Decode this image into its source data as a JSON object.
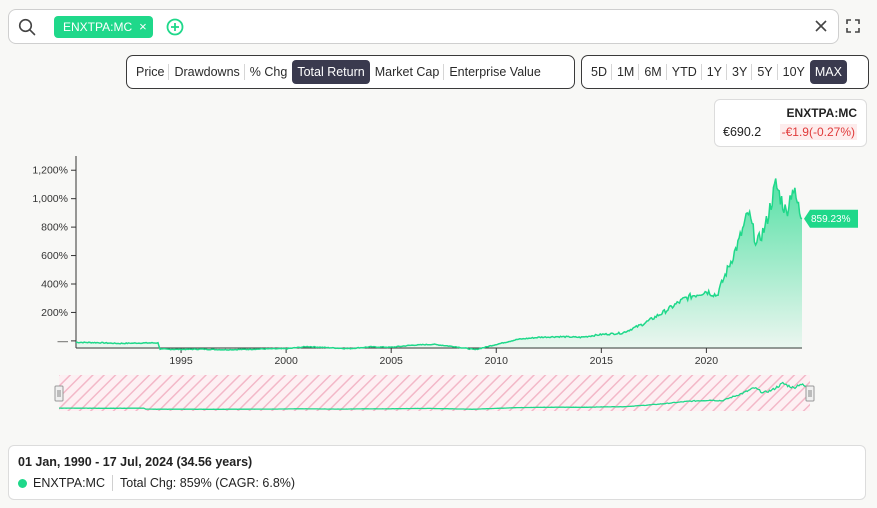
{
  "search": {
    "ticker_chip": "ENXTPA:MC",
    "chip_remove": "×"
  },
  "metric_tabs": [
    {
      "label": "Price",
      "active": false
    },
    {
      "label": "Drawdowns",
      "active": false
    },
    {
      "label": "% Chg",
      "active": false
    },
    {
      "label": "Total Return",
      "active": true
    },
    {
      "label": "Market Cap",
      "active": false
    },
    {
      "label": "Enterprise Value",
      "active": false
    }
  ],
  "range_tabs": [
    {
      "label": "5D",
      "active": false
    },
    {
      "label": "1M",
      "active": false
    },
    {
      "label": "6M",
      "active": false
    },
    {
      "label": "YTD",
      "active": false
    },
    {
      "label": "1Y",
      "active": false
    },
    {
      "label": "3Y",
      "active": false
    },
    {
      "label": "5Y",
      "active": false
    },
    {
      "label": "10Y",
      "active": false
    },
    {
      "label": "MAX",
      "active": true
    }
  ],
  "quote": {
    "ticker": "ENXTPA:MC",
    "price": "€690.2",
    "change": "-€1.9(-0.27%)"
  },
  "colors": {
    "accent": "#1fd88a",
    "negative": "#e03b3b",
    "active_tab": "#3a3a4e",
    "navigator_hatch": "#f3b8c8"
  },
  "chart_data": {
    "type": "area",
    "series": [
      {
        "name": "ENXTPA:MC"
      }
    ],
    "y_ticks": [
      {
        "label": "1,200%",
        "value": 1200
      },
      {
        "label": "1,000%",
        "value": 1000
      },
      {
        "label": "800%",
        "value": 800
      },
      {
        "label": "600%",
        "value": 600
      },
      {
        "label": "400%",
        "value": 400
      },
      {
        "label": "200%",
        "value": 200
      },
      {
        "label": "—",
        "value": 0
      }
    ],
    "x_ticks": [
      {
        "label": "1995",
        "value": 1995
      },
      {
        "label": "2000",
        "value": 2000
      },
      {
        "label": "2005",
        "value": 2005
      },
      {
        "label": "2010",
        "value": 2010
      },
      {
        "label": "2015",
        "value": 2015
      },
      {
        "label": "2020",
        "value": 2020
      }
    ],
    "ylim": [
      -50,
      1300
    ],
    "xlim": [
      1990.0,
      2024.55
    ],
    "points": [
      [
        1990.0,
        -10
      ],
      [
        1991.0,
        -12
      ],
      [
        1992.0,
        -18
      ],
      [
        1993.0,
        -15
      ],
      [
        1993.9,
        -14
      ],
      [
        1994.0,
        -58
      ],
      [
        1995.0,
        -60
      ],
      [
        1996.0,
        -58
      ],
      [
        1997.0,
        -62
      ],
      [
        1998.0,
        -60
      ],
      [
        1999.0,
        -56
      ],
      [
        2000.0,
        -55
      ],
      [
        2001.0,
        -40
      ],
      [
        2002.0,
        -48
      ],
      [
        2003.0,
        -54
      ],
      [
        2004.0,
        -42
      ],
      [
        2005.0,
        -45
      ],
      [
        2006.0,
        -30
      ],
      [
        2007.0,
        -24
      ],
      [
        2008.0,
        -40
      ],
      [
        2009.0,
        -62
      ],
      [
        2010.0,
        -25
      ],
      [
        2011.0,
        10
      ],
      [
        2012.0,
        25
      ],
      [
        2013.0,
        30
      ],
      [
        2014.0,
        25
      ],
      [
        2015.0,
        45
      ],
      [
        2016.0,
        55
      ],
      [
        2017.0,
        120
      ],
      [
        2018.0,
        205
      ],
      [
        2019.0,
        300
      ],
      [
        2020.0,
        350
      ],
      [
        2020.5,
        320
      ],
      [
        2021.0,
        500
      ],
      [
        2021.5,
        680
      ],
      [
        2022.0,
        900
      ],
      [
        2022.4,
        680
      ],
      [
        2022.8,
        800
      ],
      [
        2023.3,
        1100
      ],
      [
        2023.8,
        900
      ],
      [
        2024.1,
        1080
      ],
      [
        2024.55,
        859
      ]
    ],
    "last_value_label": "859.23%"
  },
  "summary": {
    "range": "01 Jan, 1990 - 17 Jul, 2024 (34.56 years)",
    "ticker": "ENXTPA:MC",
    "change": "Total Chg: 859% (CAGR: 6.8%)"
  }
}
